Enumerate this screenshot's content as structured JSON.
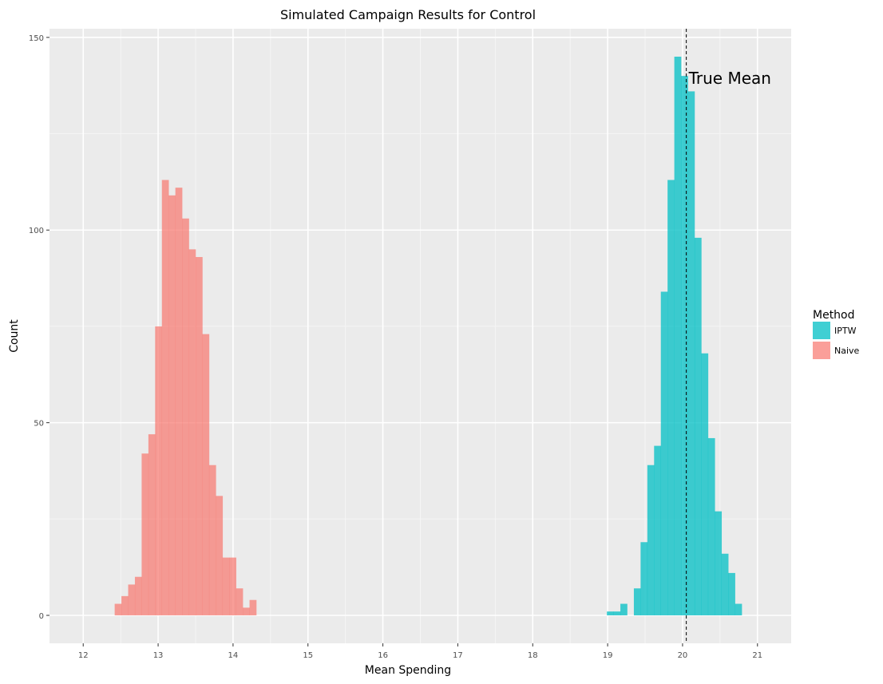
{
  "chart_data": {
    "type": "bar",
    "title": "Simulated Campaign Results for Control",
    "xlabel": "Mean Spending",
    "ylabel": "Count",
    "xlim": [
      11.55,
      21.45
    ],
    "ylim": [
      -7.25,
      152.25
    ],
    "x_ticks": [
      12,
      13,
      14,
      15,
      16,
      17,
      18,
      19,
      20,
      21
    ],
    "y_ticks": [
      0,
      50,
      100,
      150
    ],
    "grid": true,
    "legend": {
      "title": "Method",
      "placement": "right",
      "entries": [
        "IPTW",
        "Naive"
      ]
    },
    "vline": {
      "x": 20.05,
      "style": "dashed",
      "label": "True Mean"
    },
    "series": [
      {
        "name": "Naive",
        "color": "#F8766D",
        "opacity": 0.7,
        "bin_width": 0.09,
        "bins": [
          {
            "x0": 12.42,
            "count": 3
          },
          {
            "x0": 12.51,
            "count": 5
          },
          {
            "x0": 12.6,
            "count": 8
          },
          {
            "x0": 12.69,
            "count": 10
          },
          {
            "x0": 12.78,
            "count": 42
          },
          {
            "x0": 12.87,
            "count": 47
          },
          {
            "x0": 12.96,
            "count": 75
          },
          {
            "x0": 13.05,
            "count": 113
          },
          {
            "x0": 13.14,
            "count": 109
          },
          {
            "x0": 13.23,
            "count": 111
          },
          {
            "x0": 13.32,
            "count": 103
          },
          {
            "x0": 13.41,
            "count": 95
          },
          {
            "x0": 13.5,
            "count": 93
          },
          {
            "x0": 13.59,
            "count": 73
          },
          {
            "x0": 13.68,
            "count": 39
          },
          {
            "x0": 13.77,
            "count": 31
          },
          {
            "x0": 13.86,
            "count": 15
          },
          {
            "x0": 13.95,
            "count": 15
          },
          {
            "x0": 14.04,
            "count": 7
          },
          {
            "x0": 14.13,
            "count": 2
          },
          {
            "x0": 14.22,
            "count": 4
          }
        ]
      },
      {
        "name": "IPTW",
        "color": "#00BFC4",
        "opacity": 0.75,
        "bin_width": 0.09,
        "bins": [
          {
            "x0": 18.99,
            "count": 1
          },
          {
            "x0": 19.08,
            "count": 1
          },
          {
            "x0": 19.17,
            "count": 3
          },
          {
            "x0": 19.26,
            "count": 0
          },
          {
            "x0": 19.35,
            "count": 7
          },
          {
            "x0": 19.44,
            "count": 19
          },
          {
            "x0": 19.53,
            "count": 39
          },
          {
            "x0": 19.62,
            "count": 44
          },
          {
            "x0": 19.71,
            "count": 84
          },
          {
            "x0": 19.8,
            "count": 113
          },
          {
            "x0": 19.89,
            "count": 145
          },
          {
            "x0": 19.98,
            "count": 140
          },
          {
            "x0": 20.07,
            "count": 136
          },
          {
            "x0": 20.16,
            "count": 98
          },
          {
            "x0": 20.25,
            "count": 68
          },
          {
            "x0": 20.34,
            "count": 46
          },
          {
            "x0": 20.43,
            "count": 27
          },
          {
            "x0": 20.52,
            "count": 16
          },
          {
            "x0": 20.61,
            "count": 11
          },
          {
            "x0": 20.7,
            "count": 3
          }
        ]
      }
    ]
  }
}
